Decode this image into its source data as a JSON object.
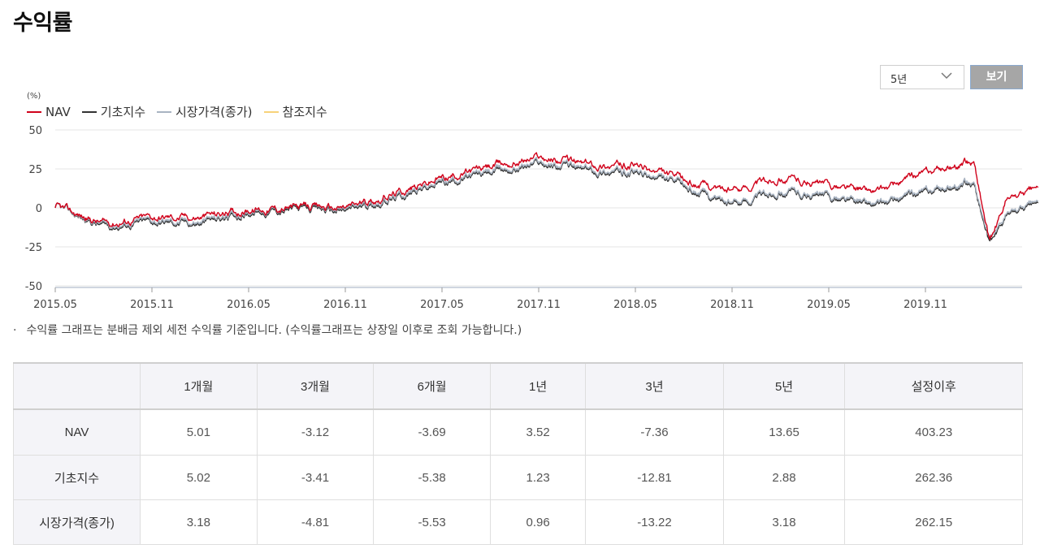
{
  "page": {
    "title": "수익률"
  },
  "controls": {
    "period_value": "5년",
    "view_button": "보기"
  },
  "chart_data": {
    "type": "line",
    "unit_label": "(%)",
    "ylim": [
      -50,
      50
    ],
    "y_ticks": [
      "50",
      "25",
      "0",
      "-25",
      "-50"
    ],
    "x_ticks": [
      "2015.05",
      "2015.11",
      "2016.05",
      "2016.11",
      "2017.05",
      "2017.11",
      "2018.05",
      "2018.11",
      "2019.05",
      "2019.11"
    ],
    "grid": true,
    "legend_position": "top-left",
    "series": [
      {
        "name": "NAV",
        "color": "#d0021b",
        "points": [
          [
            "2015.05",
            0
          ],
          [
            "2015.08",
            -10
          ],
          [
            "2015.11",
            -6
          ],
          [
            "2016.02",
            -6
          ],
          [
            "2016.05",
            -1
          ],
          [
            "2016.08",
            0
          ],
          [
            "2016.11",
            0
          ],
          [
            "2017.02",
            9
          ],
          [
            "2017.05",
            19
          ],
          [
            "2017.08",
            26
          ],
          [
            "2017.11",
            33
          ],
          [
            "2018.02",
            28
          ],
          [
            "2018.05",
            27
          ],
          [
            "2018.08",
            17
          ],
          [
            "2018.11",
            11
          ],
          [
            "2019.02",
            20
          ],
          [
            "2019.05",
            14
          ],
          [
            "2019.08",
            10
          ],
          [
            "2019.11",
            22
          ],
          [
            "2020.02",
            30
          ],
          [
            "2020.03",
            -23
          ],
          [
            "2020.04",
            5
          ],
          [
            "2020.06",
            13
          ]
        ]
      },
      {
        "name": "기초지수",
        "color": "#333333",
        "points": [
          [
            "2015.05",
            0
          ],
          [
            "2015.08",
            -12
          ],
          [
            "2015.11",
            -9
          ],
          [
            "2016.02",
            -10
          ],
          [
            "2016.05",
            -3
          ],
          [
            "2016.08",
            -1
          ],
          [
            "2016.11",
            -2
          ],
          [
            "2017.02",
            6
          ],
          [
            "2017.05",
            16
          ],
          [
            "2017.08",
            22
          ],
          [
            "2017.11",
            29
          ],
          [
            "2018.02",
            24
          ],
          [
            "2018.05",
            22
          ],
          [
            "2018.08",
            13
          ],
          [
            "2018.11",
            2
          ],
          [
            "2019.02",
            11
          ],
          [
            "2019.05",
            6
          ],
          [
            "2019.08",
            1
          ],
          [
            "2019.11",
            9
          ],
          [
            "2020.02",
            16
          ],
          [
            "2020.03",
            -24
          ],
          [
            "2020.04",
            -5
          ],
          [
            "2020.06",
            3
          ]
        ]
      },
      {
        "name": "시장가격(종가)",
        "color": "#a9b4c2",
        "points": [
          [
            "2015.05",
            0
          ],
          [
            "2015.08",
            -11
          ],
          [
            "2015.11",
            -8
          ],
          [
            "2016.02",
            -9
          ],
          [
            "2016.05",
            -2
          ],
          [
            "2016.08",
            0
          ],
          [
            "2016.11",
            -1
          ],
          [
            "2017.02",
            7
          ],
          [
            "2017.05",
            17
          ],
          [
            "2017.08",
            23
          ],
          [
            "2017.11",
            30
          ],
          [
            "2018.02",
            25
          ],
          [
            "2018.05",
            23
          ],
          [
            "2018.08",
            14
          ],
          [
            "2018.11",
            3
          ],
          [
            "2019.02",
            12
          ],
          [
            "2019.05",
            7
          ],
          [
            "2019.08",
            2
          ],
          [
            "2019.11",
            10
          ],
          [
            "2020.02",
            17
          ],
          [
            "2020.03",
            -22
          ],
          [
            "2020.04",
            -4
          ],
          [
            "2020.06",
            4
          ]
        ]
      },
      {
        "name": "참조지수",
        "color": "#f7d27a",
        "points": []
      }
    ]
  },
  "note": "수익률 그래프는 분배금 제외 세전 수익률 기준입니다. (수익률그래프는 상장일 이후로 조회 가능합니다.)",
  "table": {
    "headers": [
      "1개월",
      "3개월",
      "6개월",
      "1년",
      "3년",
      "5년",
      "설정이후"
    ],
    "rows": [
      {
        "label": "NAV",
        "values": [
          "5.01",
          "-3.12",
          "-3.69",
          "3.52",
          "-7.36",
          "13.65",
          "403.23"
        ]
      },
      {
        "label": "기초지수",
        "values": [
          "5.02",
          "-3.41",
          "-5.38",
          "1.23",
          "-12.81",
          "2.88",
          "262.36"
        ]
      },
      {
        "label": "시장가격(종가)",
        "values": [
          "3.18",
          "-4.81",
          "-5.53",
          "0.96",
          "-13.22",
          "3.18",
          "262.15"
        ]
      }
    ]
  }
}
